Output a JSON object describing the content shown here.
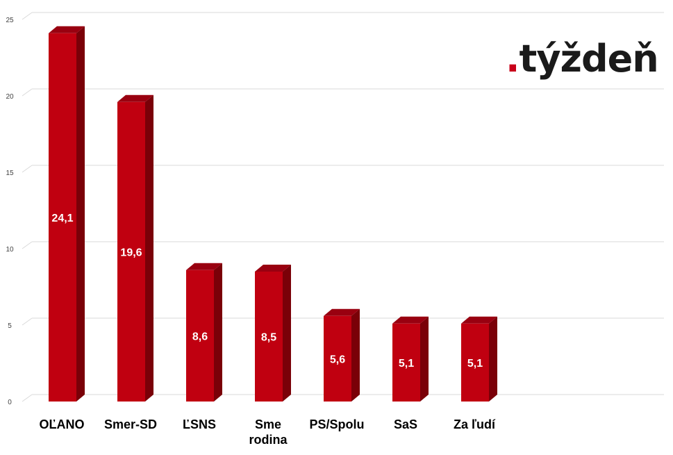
{
  "logo": {
    "dot": ".",
    "text": "týždeň"
  },
  "colors": {
    "bar_front": "#c00010",
    "bar_side": "#7a0008",
    "bar_top": "#990010",
    "grid": "#d9d9d9"
  },
  "chart_data": {
    "type": "bar",
    "categories": [
      "OĽANO",
      "Smer-SD",
      "ĽSNS",
      "Sme rodina",
      "PS/Spolu",
      "SaS",
      "Za ľudí"
    ],
    "category_lines": [
      [
        "OĽANO"
      ],
      [
        "Smer-SD"
      ],
      [
        "ĽSNS"
      ],
      [
        "Sme",
        "rodina"
      ],
      [
        "PS/Spolu"
      ],
      [
        "SaS"
      ],
      [
        "Za ľudí"
      ]
    ],
    "values": [
      24.1,
      19.6,
      8.6,
      8.5,
      5.6,
      5.1,
      5.1
    ],
    "value_labels": [
      "24,1",
      "19,6",
      "8,6",
      "8,5",
      "5,6",
      "5,1",
      "5,1"
    ],
    "yticks": [
      0,
      5,
      10,
      15,
      20,
      25
    ],
    "ylim": [
      0,
      25
    ],
    "grid": true,
    "style": "3d-bar",
    "title": "",
    "xlabel": "",
    "ylabel": ""
  }
}
